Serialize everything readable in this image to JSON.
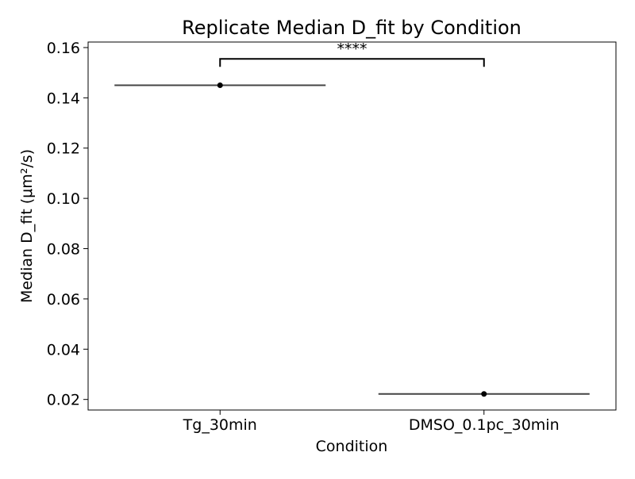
{
  "chart_data": {
    "type": "box",
    "title": "Replicate Median D_fit by Condition",
    "xlabel": "Condition",
    "ylabel": "Median D_fit (μm²/s)",
    "categories": [
      "Tg_30min",
      "DMSO_0.1pc_30min"
    ],
    "values": [
      0.145,
      0.0222
    ],
    "ylim": [
      0.0158,
      0.1622
    ],
    "yticks": [
      0.02,
      0.04,
      0.06,
      0.08,
      0.1,
      0.12,
      0.14,
      0.16
    ],
    "ytick_labels": [
      "0.02",
      "0.04",
      "0.06",
      "0.08",
      "0.10",
      "0.12",
      "0.14",
      "0.16"
    ],
    "significance": {
      "between": [
        "Tg_30min",
        "DMSO_0.1pc_30min"
      ],
      "label": "****",
      "bracket_y": 0.1555
    },
    "grid": false,
    "colors": {
      "box_line": "#444444",
      "point": "#000000",
      "axes": "#000000"
    }
  }
}
